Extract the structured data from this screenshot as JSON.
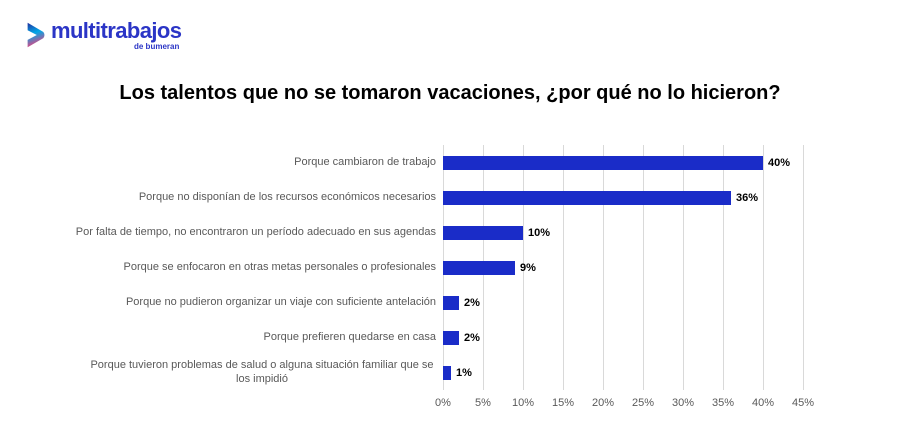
{
  "logo": {
    "brand": "multitrabajos",
    "sub": "de bumeran",
    "brand_color": "#2b35c6",
    "icon_gradient": [
      "#232f9e",
      "#00a8e8",
      "#e8417e"
    ]
  },
  "title": "Los talentos que no se tomaron vacaciones, ¿por qué no lo hicieron?",
  "chart_data": {
    "type": "bar",
    "orientation": "horizontal",
    "title": "Los talentos que no se tomaron vacaciones, ¿por qué no lo hicieron?",
    "categories": [
      "Porque cambiaron de trabajo",
      "Porque no disponían de los recursos económicos necesarios",
      "Por falta de tiempo, no encontraron un período adecuado en sus agendas",
      "Porque se enfocaron en otras metas personales o profesionales",
      "Porque no pudieron organizar un viaje con suficiente antelación",
      "Porque prefieren quedarse en casa",
      "Porque tuvieron problemas de salud o alguna situación familiar que se los impidió"
    ],
    "values": [
      40,
      36,
      10,
      9,
      2,
      2,
      1
    ],
    "value_labels": [
      "40%",
      "36%",
      "10%",
      "9%",
      "2%",
      "2%",
      "1%"
    ],
    "xlabel": "",
    "ylabel": "",
    "xlim": [
      0,
      45
    ],
    "xtick_values": [
      0,
      5,
      10,
      15,
      20,
      25,
      30,
      35,
      40,
      45
    ],
    "xtick_labels": [
      "0%",
      "5%",
      "10%",
      "15%",
      "20%",
      "25%",
      "30%",
      "35%",
      "40%",
      "45%"
    ],
    "grid": true,
    "legend": "none",
    "bar_color": "#1a2cc8",
    "gridline_color": "#d9d9d9",
    "category_label_color": "#595959",
    "value_label_color": "#000000",
    "tick_label_color": "#595959"
  }
}
